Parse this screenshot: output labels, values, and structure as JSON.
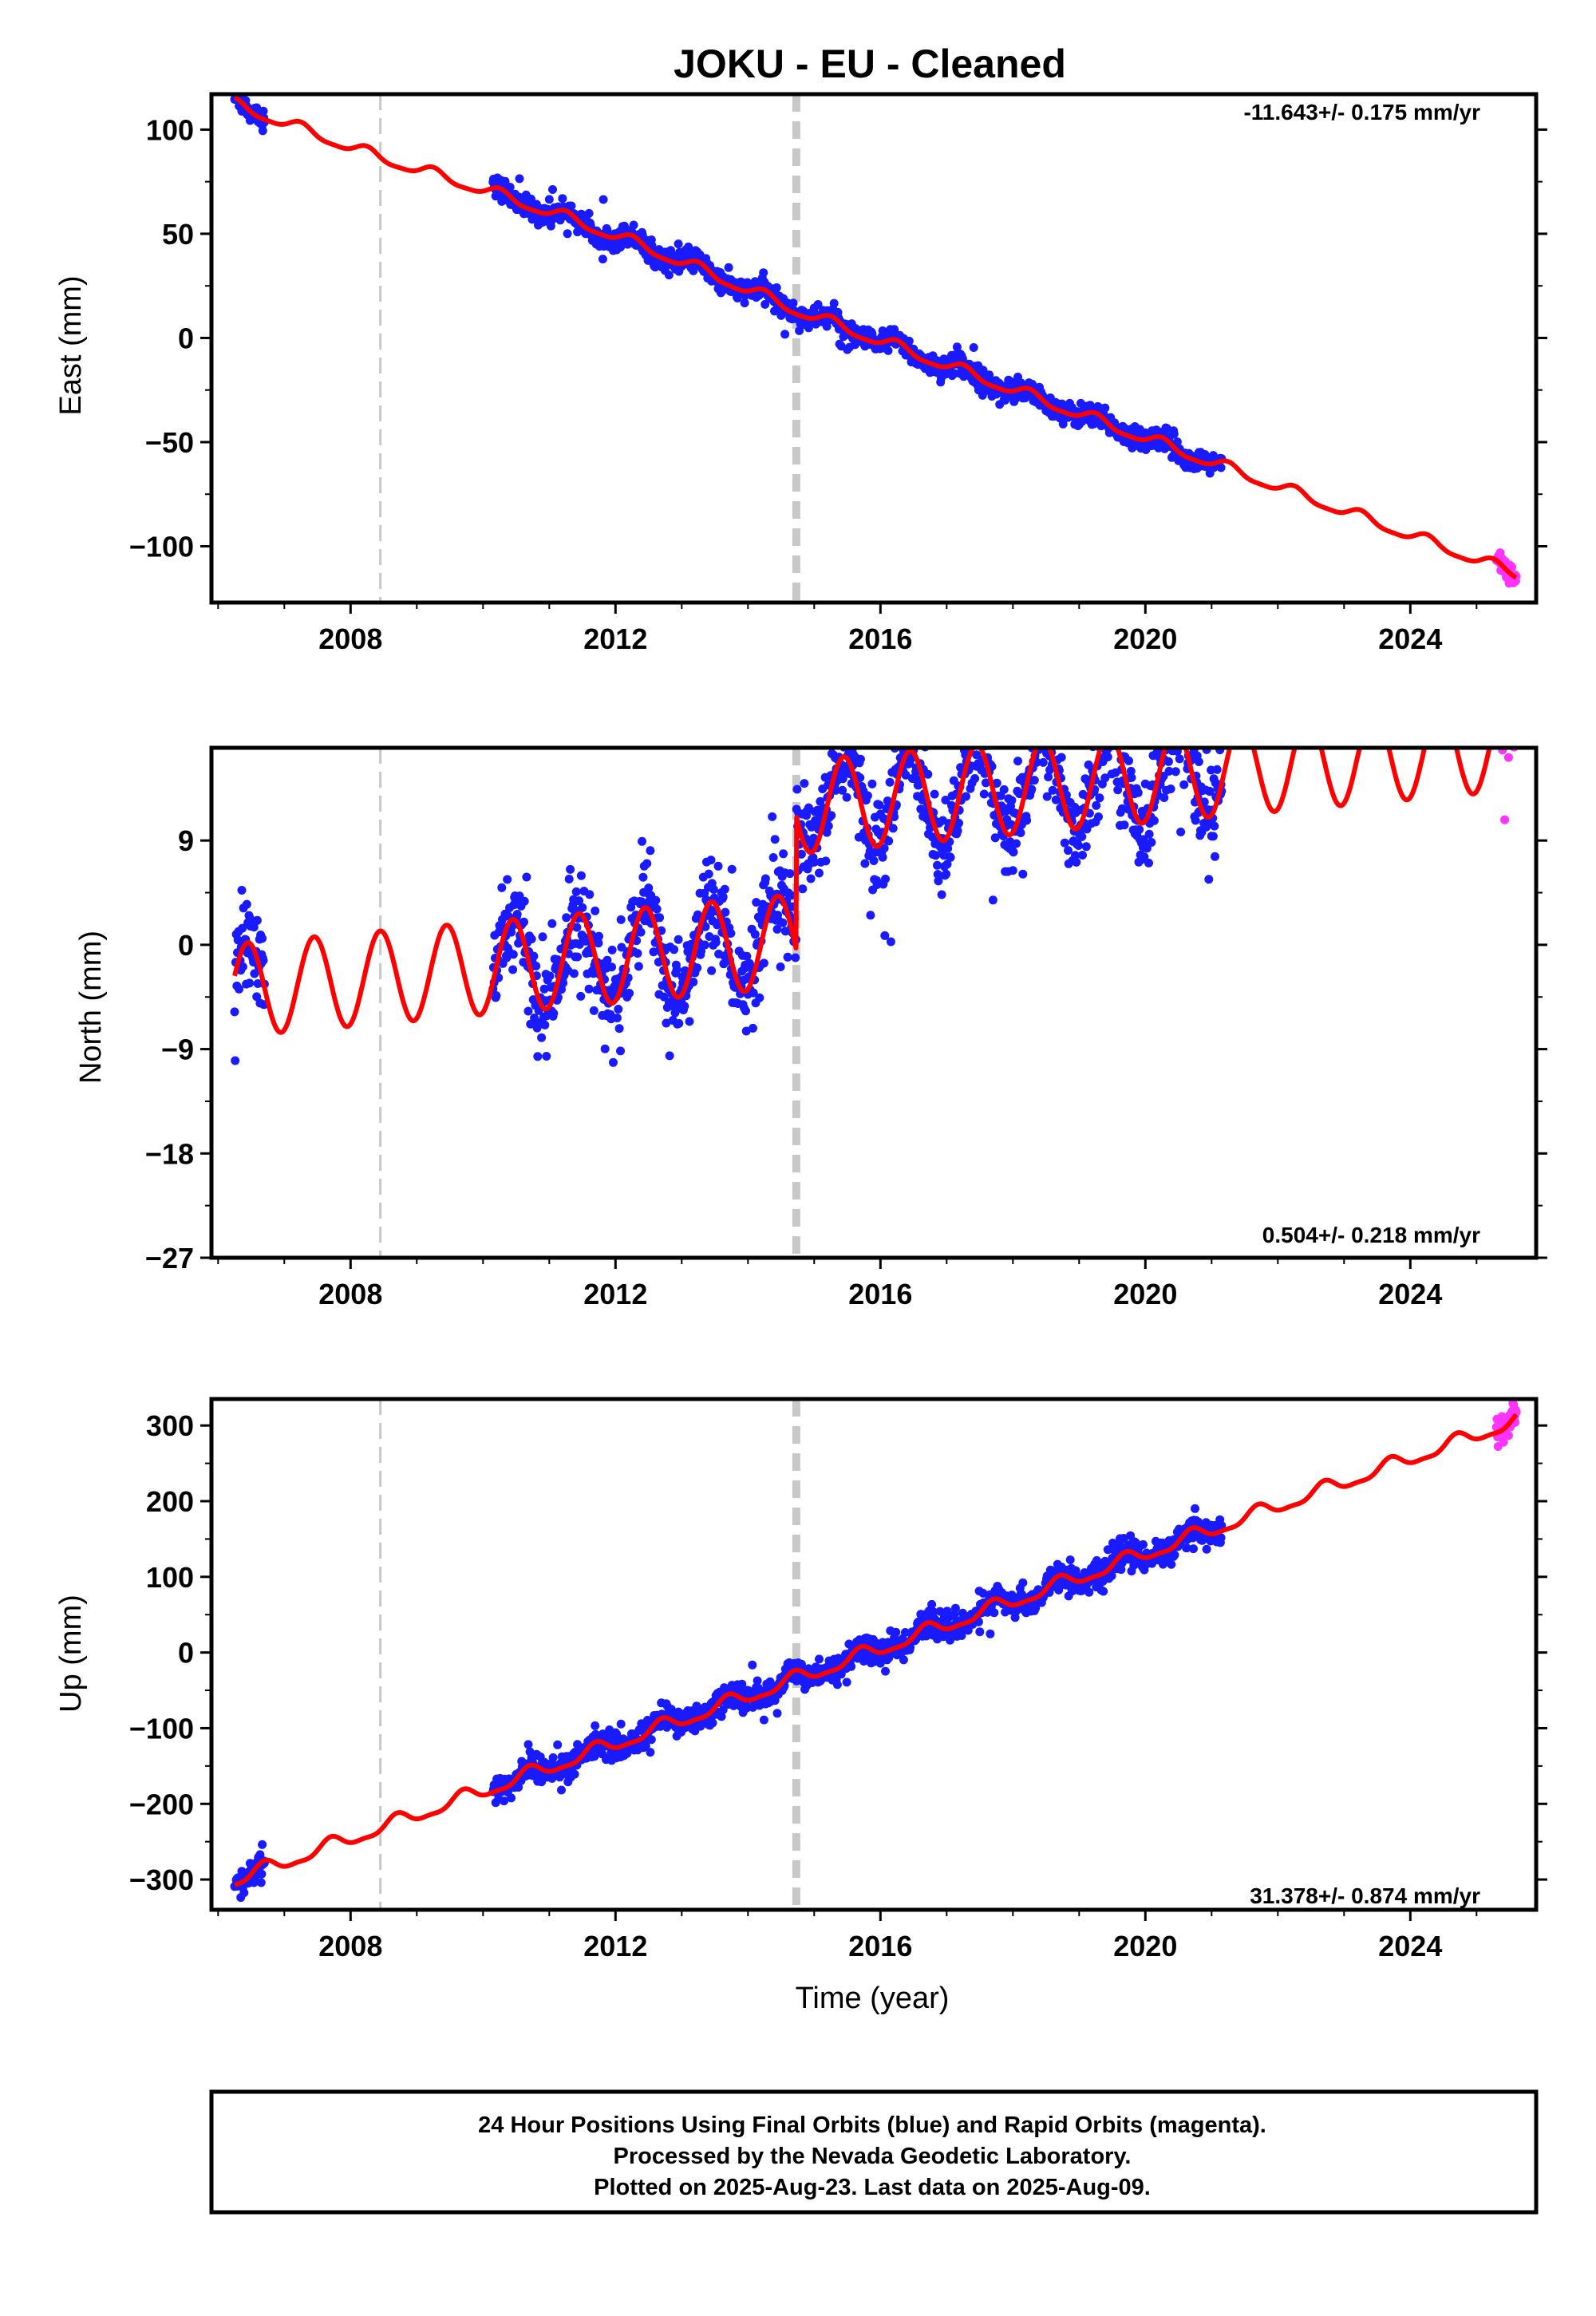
{
  "figure": {
    "title": "JOKU  - EU - Cleaned",
    "xlabel": "Time (year)",
    "footer_lines": [
      "24 Hour Positions Using Final Orbits (blue) and Rapid Orbits (magenta).",
      "Processed by the Nevada Geodetic Laboratory.",
      "Plotted on 2025-Aug-23. Last data on 2025-Aug-09."
    ],
    "colors": {
      "final_orbits": "#1a1aff",
      "rapid_orbits": "#ff33ff",
      "model": "#ff0000",
      "event_lines": "#c8c8c8"
    }
  },
  "chart_data": [
    {
      "type": "scatter",
      "id": "east",
      "ylabel": "East (mm)",
      "rate_label": "-11.643+/- 0.175 mm/yr",
      "rate_label_position": "top-right",
      "xlim": [
        2005.9,
        2025.9
      ],
      "ylim": [
        -127,
        117
      ],
      "yticks": [
        100,
        50,
        0,
        -50,
        -100
      ],
      "ytick_labels": [
        "100",
        "50",
        "0",
        "−50",
        "−100"
      ],
      "xticks": [
        2008,
        2012,
        2016,
        2020,
        2024
      ],
      "xtick_labels": [
        "2008",
        "2012",
        "2016",
        "2020",
        "2024"
      ],
      "event_lines": [
        {
          "x": 2008.45,
          "style": "dashed-thin"
        },
        {
          "x": 2014.73,
          "style": "dashed-thick"
        }
      ],
      "model": {
        "rate": -11.643,
        "offset_2016": -1.5,
        "annual_amp": 2.6,
        "semiannual_amp": 0.7,
        "steps": [],
        "sawtooth": {
          "start": 2008.45,
          "end": 2014.73,
          "amp": 4
        }
      },
      "data_segments": [
        [
          2006.25,
          2006.7,
          "final"
        ],
        [
          2010.15,
          2021.15,
          "final"
        ],
        [
          2025.3,
          2025.6,
          "rapid"
        ]
      ],
      "data_noise": 2.6
    },
    {
      "type": "scatter",
      "id": "north",
      "ylabel": "North (mm)",
      "rate_label": "0.504+/- 0.218 mm/yr",
      "rate_label_position": "bottom-right",
      "xlim": [
        2005.9,
        2025.9
      ],
      "ylim": [
        -27,
        17
      ],
      "yticks": [
        9,
        0,
        -9,
        -18,
        -27
      ],
      "ytick_labels": [
        "9",
        "0",
        "−9",
        "−18",
        "−27"
      ],
      "xticks": [
        2008,
        2012,
        2016,
        2020,
        2024
      ],
      "xtick_labels": [
        "2008",
        "2012",
        "2016",
        "2020",
        "2024"
      ],
      "event_lines": [
        {
          "x": 2008.45,
          "style": "dashed-thin"
        },
        {
          "x": 2014.73,
          "style": "dashed-thick"
        }
      ],
      "model": {
        "rate": 0.504,
        "offset_2016": 1.0,
        "annual_amp": 4.0,
        "semiannual_amp": 0,
        "annual_phase_peak": 0.45,
        "steps": [
          {
            "x": 2014.73,
            "value": 11.5
          }
        ],
        "sawtooth": null
      },
      "data_segments": [
        [
          2006.25,
          2006.7,
          "final"
        ],
        [
          2010.15,
          2021.15,
          "final"
        ],
        [
          2025.3,
          2025.6,
          "rapid"
        ]
      ],
      "data_noise": 2.0
    },
    {
      "type": "scatter",
      "id": "up",
      "ylabel": "Up (mm)",
      "rate_label": "31.378+/- 0.874 mm/yr",
      "rate_label_position": "bottom-right",
      "xlim": [
        2005.9,
        2025.9
      ],
      "ylim": [
        -340,
        335
      ],
      "yticks": [
        300,
        200,
        100,
        0,
        -100,
        -200,
        -300
      ],
      "ytick_labels": [
        "300",
        "200",
        "100",
        "0",
        "−100",
        "−200",
        "−300"
      ],
      "xticks": [
        2008,
        2012,
        2016,
        2020,
        2024
      ],
      "xtick_labels": [
        "2008",
        "2012",
        "2016",
        "2020",
        "2024"
      ],
      "event_lines": [
        {
          "x": 2008.45,
          "style": "dashed-thin"
        },
        {
          "x": 2014.73,
          "style": "dashed-thick"
        }
      ],
      "model": {
        "rate": 31.378,
        "offset_2016": 5,
        "annual_amp": 9,
        "semiannual_amp": 3,
        "annual_phase_peak": 0.7,
        "steps": [],
        "sawtooth": null
      },
      "data_segments": [
        [
          2006.25,
          2006.7,
          "final"
        ],
        [
          2010.15,
          2021.15,
          "final"
        ],
        [
          2025.3,
          2025.6,
          "rapid"
        ]
      ],
      "data_noise": 9
    }
  ]
}
